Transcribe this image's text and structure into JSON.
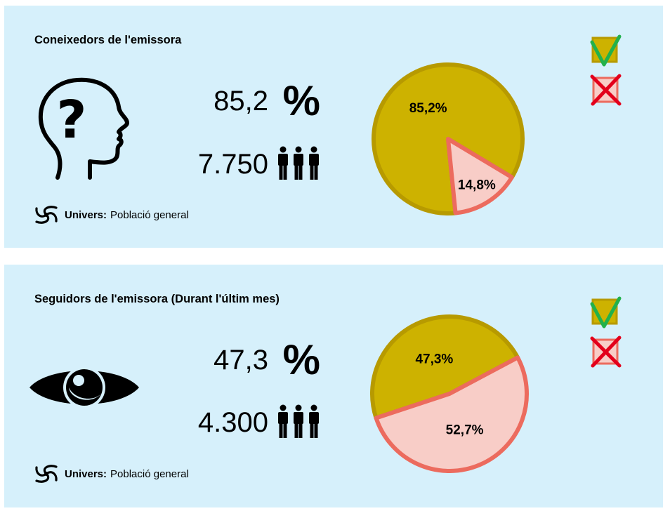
{
  "colors": {
    "panel_bg": "#d6f0fb",
    "yes": "#cdb200",
    "yes_stroke": "#b79a00",
    "no": "#f8cdc7",
    "no_stroke": "#ec6b5e",
    "check": "#22b14c",
    "cross": "#e3001b"
  },
  "panels": [
    {
      "title": "Coneixedors de l'emissora",
      "icon": "head-question-icon",
      "percent_value": "85,2",
      "percent_sign": "%",
      "count_value": "7.750",
      "source_label": "Univers:",
      "source_text": "Població general"
    },
    {
      "title": "Seguidors de l'emissora (Durant l'últim mes)",
      "icon": "eye-icon",
      "percent_value": "47,3",
      "percent_sign": "%",
      "count_value": "4.300",
      "source_label": "Univers:",
      "source_text": "Població general"
    }
  ],
  "chart_data": [
    {
      "type": "pie",
      "title": "Coneixedors de l'emissora",
      "categories": [
        "yes",
        "no"
      ],
      "values": [
        85.2,
        14.8
      ],
      "labels": [
        "85,2%",
        "14,8%"
      ],
      "colors": [
        "#cdb200",
        "#f8cdc7"
      ],
      "legend": [
        "check-icon",
        "cross-icon"
      ]
    },
    {
      "type": "pie",
      "title": "Seguidors de l'emissora (Durant l'últim mes)",
      "categories": [
        "yes",
        "no"
      ],
      "values": [
        47.3,
        52.7
      ],
      "labels": [
        "47,3%",
        "52,7%"
      ],
      "colors": [
        "#cdb200",
        "#f8cdc7"
      ],
      "legend": [
        "check-icon",
        "cross-icon"
      ]
    }
  ]
}
